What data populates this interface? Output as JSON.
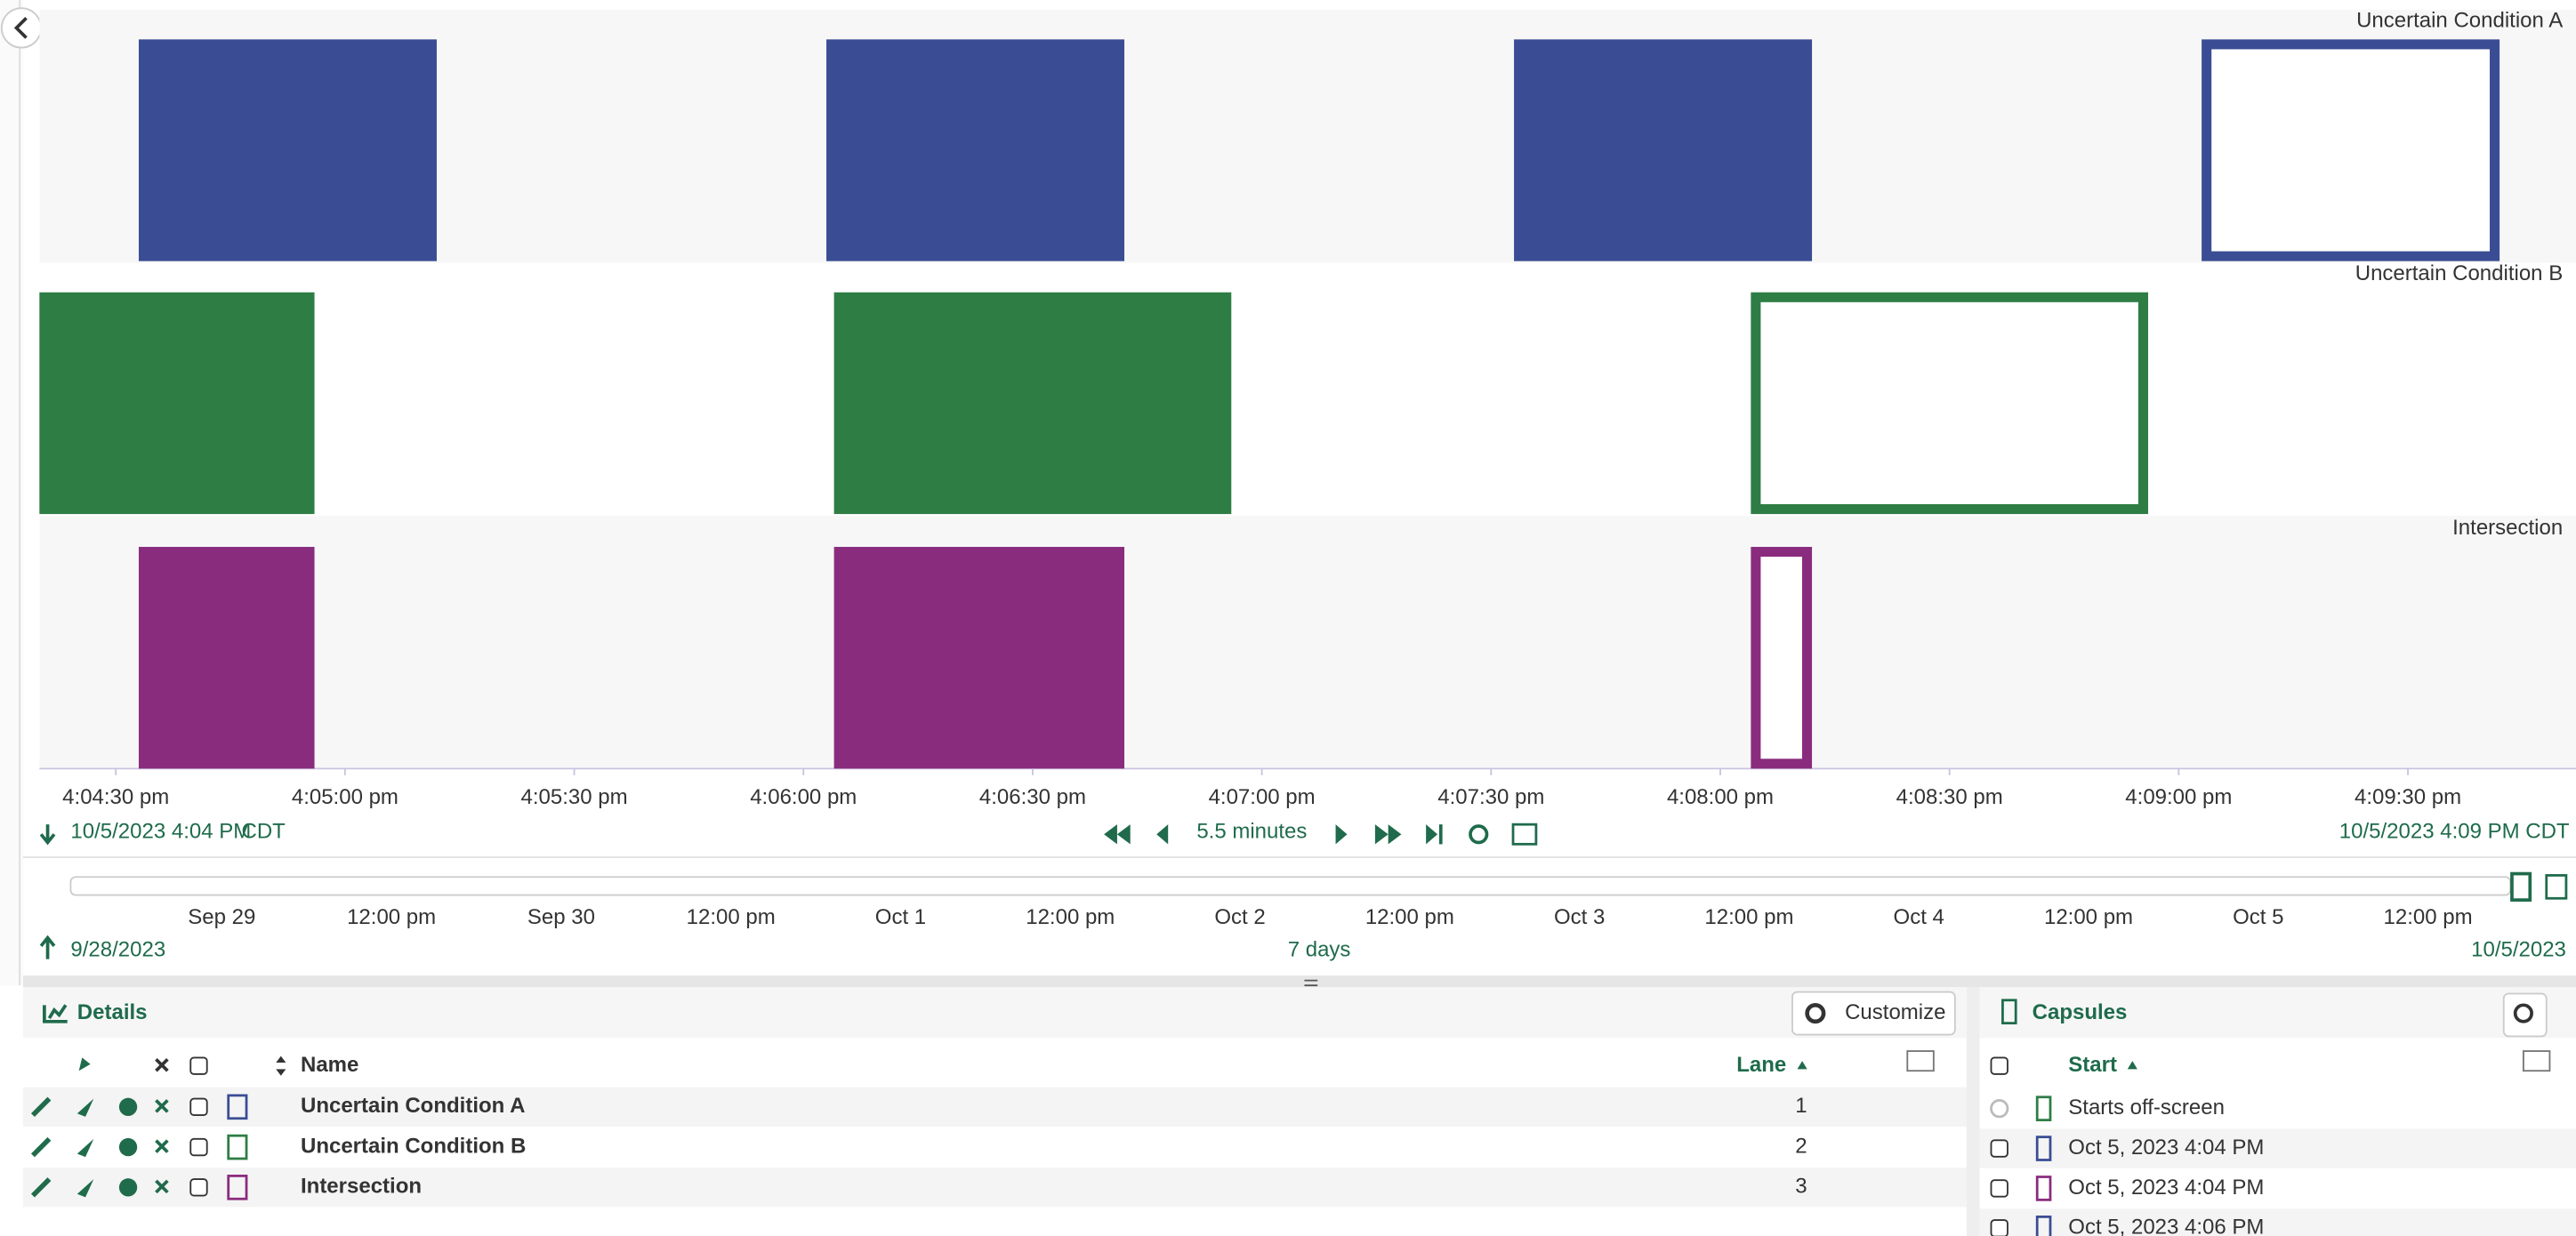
{
  "chart_data": {
    "type": "capsule",
    "xlim": [
      260,
      592
    ],
    "xticks": [
      {
        "value": 270,
        "label": "4:04:30 pm"
      },
      {
        "value": 300,
        "label": "4:05:00 pm"
      },
      {
        "value": 330,
        "label": "4:05:30 pm"
      },
      {
        "value": 360,
        "label": "4:06:00 pm"
      },
      {
        "value": 390,
        "label": "4:06:30 pm"
      },
      {
        "value": 420,
        "label": "4:07:00 pm"
      },
      {
        "value": 450,
        "label": "4:07:30 pm"
      },
      {
        "value": 480,
        "label": "4:08:00 pm"
      },
      {
        "value": 510,
        "label": "4:08:30 pm"
      },
      {
        "value": 540,
        "label": "4:09:00 pm"
      },
      {
        "value": 570,
        "label": "4:09:30 pm"
      }
    ],
    "series": [
      {
        "name": "Uncertain Condition A",
        "color": "#3a4d94",
        "starts": [
          273,
          363,
          453,
          543
        ],
        "ends": [
          312,
          402,
          492,
          582
        ],
        "uncertain": [
          false,
          false,
          false,
          true
        ]
      },
      {
        "name": "Uncertain Condition B",
        "color": "#2e7d45",
        "starts": [
          255,
          364,
          484
        ],
        "ends": [
          296,
          416,
          536
        ],
        "uncertain": [
          false,
          false,
          true
        ]
      },
      {
        "name": "Intersection",
        "color": "#8a2c7e",
        "starts": [
          273,
          364,
          484
        ],
        "ends": [
          296,
          402,
          492
        ],
        "uncertain": [
          false,
          false,
          true
        ]
      }
    ]
  },
  "display_range": {
    "start": "10/5/2023 4:04 PM",
    "start_tz": "CDT",
    "duration": "5.5 minutes",
    "end": "10/5/2023 4:09 PM CDT"
  },
  "overview": {
    "ticks": [
      "Sep 29",
      "12:00 pm",
      "Sep 30",
      "12:00 pm",
      "Oct 1",
      "12:00 pm",
      "Oct 2",
      "12:00 pm",
      "Oct 3",
      "12:00 pm",
      "Oct 4",
      "12:00 pm",
      "Oct 5",
      "12:00 pm"
    ],
    "start": "9/28/2023",
    "duration": "7 days",
    "end": "10/5/2023"
  },
  "details": {
    "title": "Details",
    "customize": "Customize",
    "name_header": "Name",
    "lane_header": "Lane",
    "rows": [
      {
        "name": "Uncertain Condition A",
        "lane": 1,
        "color": "#3a4d94"
      },
      {
        "name": "Uncertain Condition B",
        "lane": 2,
        "color": "#2e7d45"
      },
      {
        "name": "Intersection",
        "lane": 3,
        "color": "#8a2c7e"
      }
    ]
  },
  "capsules": {
    "title": "Capsules",
    "start_header": "Start",
    "rows": [
      {
        "start": "Starts off-screen",
        "color": "#2e7d45"
      },
      {
        "start": "Oct 5, 2023 4:04 PM",
        "color": "#3a4d94"
      },
      {
        "start": "Oct 5, 2023 4:04 PM",
        "color": "#8a2c7e"
      },
      {
        "start": "Oct 5, 2023 4:06 PM",
        "color": "#3a4d94"
      }
    ]
  }
}
